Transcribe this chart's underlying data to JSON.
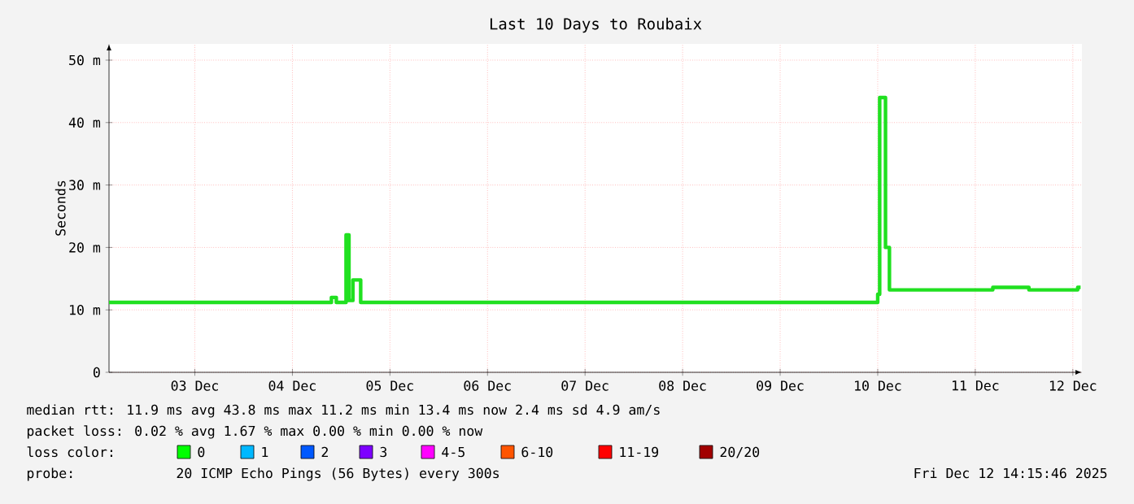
{
  "chart_data": {
    "type": "step",
    "title": "Last 10 Days to Roubaix",
    "ylabel": "Seconds",
    "x": [
      "2025-12-02T14:53",
      "2025-12-04T21:36",
      "2025-12-04T22:48",
      "2025-12-05T01:12",
      "2025-12-05T01:55",
      "2025-12-05T02:53",
      "2025-12-05T04:48",
      "2025-12-10T12:00",
      "2025-12-10T12:29",
      "2025-12-10T13:55",
      "2025-12-10T14:53",
      "2025-12-11T16:19",
      "2025-12-12T01:12",
      "2025-12-12T13:12",
      "2025-12-12T13:55"
    ],
    "series": [
      {
        "color": "#20e020",
        "values": [
          11.2,
          12,
          11.2,
          22,
          11.5,
          14.8,
          11.2,
          12.5,
          44,
          20,
          13.2,
          13.6,
          13.2,
          13.6,
          13.6
        ]
      }
    ],
    "xlim": [
      "2025-12-02T14:53",
      "2025-12-12T14:15"
    ],
    "xticks": [
      {
        "value": "2025-12-03T12:00",
        "label": "03 Dec"
      },
      {
        "value": "2025-12-04T12:00",
        "label": "04 Dec"
      },
      {
        "value": "2025-12-05T12:00",
        "label": "05 Dec"
      },
      {
        "value": "2025-12-06T12:00",
        "label": "06 Dec"
      },
      {
        "value": "2025-12-07T12:00",
        "label": "07 Dec"
      },
      {
        "value": "2025-12-08T12:00",
        "label": "08 Dec"
      },
      {
        "value": "2025-12-09T12:00",
        "label": "09 Dec"
      },
      {
        "value": "2025-12-10T12:00",
        "label": "10 Dec"
      },
      {
        "value": "2025-12-11T12:00",
        "label": "11 Dec"
      },
      {
        "value": "2025-12-12T12:00",
        "label": "12 Dec"
      }
    ],
    "ylim": [
      0,
      52.6
    ],
    "yticks": [
      0,
      {
        "value": 10,
        "label": "10 m"
      },
      {
        "value": 20,
        "label": "20 m"
      },
      {
        "value": 30,
        "label": "30 m"
      },
      {
        "value": 40,
        "label": "40 m"
      },
      {
        "value": 50,
        "label": "50 m"
      }
    ],
    "grid": true,
    "annotations": [
      "median rtt:  11.9 ms avg  43.8 ms max  11.2 ms min  13.4 ms now  2.4 ms sd  4.9   am/s",
      "packet loss: 0.02 % avg  1.67 % max  0.00 % min  0.00 % now",
      "loss color:",
      "0",
      "1",
      "2",
      "3",
      "4-5",
      "6-10",
      "11-19",
      "20/20",
      "probe:",
      "20 ICMP Echo Pings (56 Bytes) every 300s",
      "Fri Dec 12 14:15:46 2025"
    ]
  }
}
